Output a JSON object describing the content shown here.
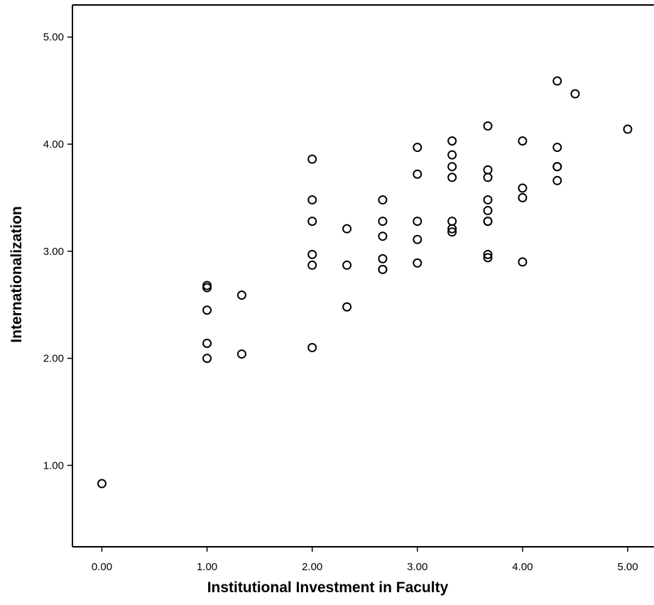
{
  "chart_data": {
    "type": "scatter",
    "title": "",
    "xlabel": "Institutional Investment in Faculty",
    "ylabel": "Internationalization",
    "xlim": [
      -0.28,
      5.25
    ],
    "ylim": [
      0.24,
      5.3
    ],
    "x_ticks": [
      "0.00",
      "1.00",
      "2.00",
      "3.00",
      "4.00",
      "5.00"
    ],
    "y_ticks": [
      "1.00",
      "2.00",
      "3.00",
      "4.00",
      "5.00"
    ],
    "grid": false,
    "legend": "none",
    "marker": "open-circle",
    "points": [
      [
        0.0,
        0.83
      ],
      [
        1.0,
        2.68
      ],
      [
        1.0,
        2.66
      ],
      [
        1.0,
        2.45
      ],
      [
        1.0,
        2.14
      ],
      [
        1.0,
        2.0
      ],
      [
        1.33,
        2.59
      ],
      [
        1.33,
        2.04
      ],
      [
        2.0,
        3.86
      ],
      [
        2.0,
        3.48
      ],
      [
        2.0,
        3.28
      ],
      [
        2.0,
        2.97
      ],
      [
        2.0,
        2.87
      ],
      [
        2.0,
        2.1
      ],
      [
        2.33,
        3.21
      ],
      [
        2.33,
        2.87
      ],
      [
        2.33,
        2.48
      ],
      [
        2.67,
        3.48
      ],
      [
        2.67,
        3.28
      ],
      [
        2.67,
        3.14
      ],
      [
        2.67,
        2.93
      ],
      [
        2.67,
        2.83
      ],
      [
        2.67,
        2.83
      ],
      [
        3.0,
        3.97
      ],
      [
        3.0,
        3.72
      ],
      [
        3.0,
        3.28
      ],
      [
        3.0,
        3.11
      ],
      [
        3.0,
        2.89
      ],
      [
        3.33,
        4.03
      ],
      [
        3.33,
        3.9
      ],
      [
        3.33,
        3.79
      ],
      [
        3.33,
        3.69
      ],
      [
        3.33,
        3.28
      ],
      [
        3.33,
        3.21
      ],
      [
        3.33,
        3.18
      ],
      [
        3.67,
        4.17
      ],
      [
        3.67,
        3.76
      ],
      [
        3.67,
        3.69
      ],
      [
        3.67,
        3.48
      ],
      [
        3.67,
        3.38
      ],
      [
        3.67,
        3.28
      ],
      [
        3.67,
        3.28
      ],
      [
        3.67,
        2.97
      ],
      [
        3.67,
        2.94
      ],
      [
        4.0,
        4.03
      ],
      [
        4.0,
        3.59
      ],
      [
        4.0,
        3.5
      ],
      [
        4.0,
        2.9
      ],
      [
        4.33,
        4.59
      ],
      [
        4.33,
        3.97
      ],
      [
        4.33,
        3.79
      ],
      [
        4.33,
        3.79
      ],
      [
        4.33,
        3.66
      ],
      [
        4.5,
        4.47
      ],
      [
        5.0,
        4.14
      ]
    ]
  }
}
